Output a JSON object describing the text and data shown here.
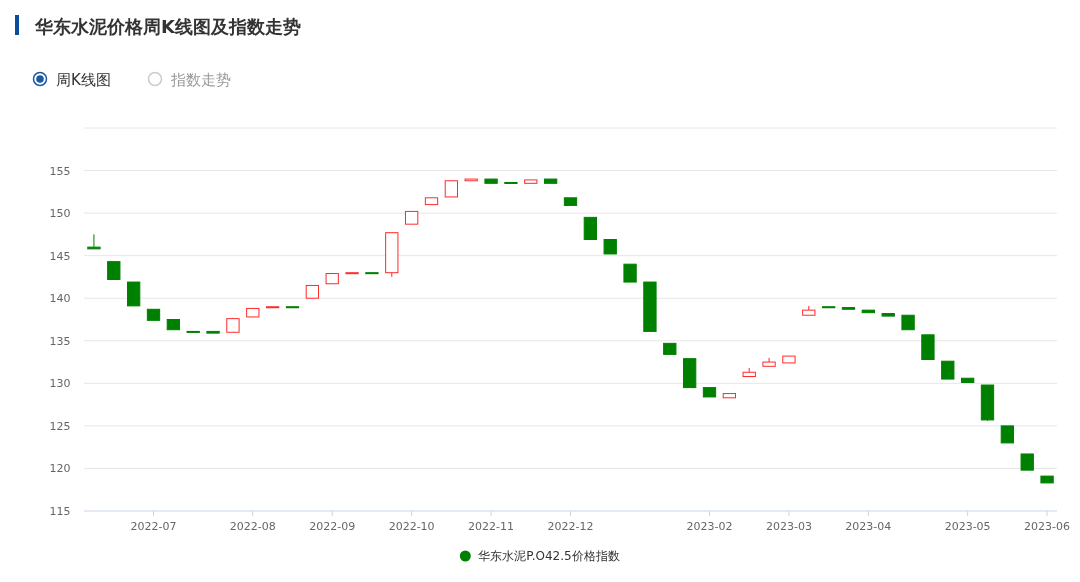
{
  "chart_data": {
    "type": "candlestick",
    "title": "华东水泥价格周K线图及指数走势",
    "annotations": [
      "周K线图",
      "指数走势"
    ],
    "categories": [
      null,
      null,
      null,
      "2022-07",
      null,
      null,
      null,
      null,
      "2022-08",
      null,
      null,
      null,
      "2022-09",
      null,
      null,
      null,
      "2022-10",
      null,
      null,
      null,
      "2022-11",
      null,
      null,
      null,
      "2022-12",
      null,
      null,
      null,
      null,
      null,
      null,
      "2023-02",
      null,
      null,
      null,
      "2023-03",
      null,
      null,
      null,
      "2023-04",
      null,
      null,
      null,
      null,
      "2023-05",
      null,
      null,
      null,
      "2023-06"
    ],
    "series": [
      {
        "name": "华东水泥P.O42.5价格指数",
        "color": "#008000",
        "ohlc": [
          [
            146.0,
            147.5,
            145.8,
            145.8
          ],
          [
            144.3,
            144.3,
            142.2,
            142.2
          ],
          [
            141.9,
            141.9,
            139.1,
            139.1
          ],
          [
            138.7,
            138.7,
            137.4,
            137.4
          ],
          [
            137.5,
            137.5,
            136.3,
            136.3
          ],
          [
            136.1,
            136.1,
            136.0,
            136.0
          ],
          [
            136.1,
            136.1,
            135.9,
            135.9
          ],
          [
            136.0,
            137.7,
            136.0,
            137.6
          ],
          [
            137.8,
            138.8,
            137.8,
            138.8
          ],
          [
            138.9,
            139.0,
            138.9,
            139.0
          ],
          [
            139.0,
            139.0,
            138.9,
            138.9
          ],
          [
            140.0,
            141.5,
            140.0,
            141.5
          ],
          [
            141.7,
            142.9,
            141.7,
            142.9
          ],
          [
            142.9,
            143.0,
            142.9,
            143.0
          ],
          [
            143.0,
            143.0,
            142.9,
            142.9
          ],
          [
            143.0,
            147.7,
            142.5,
            147.7
          ],
          [
            148.7,
            150.2,
            148.7,
            150.2
          ],
          [
            151.0,
            151.8,
            151.0,
            151.8
          ],
          [
            151.9,
            153.8,
            151.9,
            153.8
          ],
          [
            153.8,
            154.0,
            153.8,
            154.0
          ],
          [
            154.0,
            154.0,
            153.5,
            153.5
          ],
          [
            153.6,
            153.6,
            153.5,
            153.5
          ],
          [
            153.5,
            153.9,
            153.5,
            153.9
          ],
          [
            154.0,
            154.0,
            153.5,
            153.5
          ],
          [
            151.8,
            151.8,
            150.9,
            150.9
          ],
          [
            149.5,
            149.5,
            146.9,
            146.9
          ],
          [
            146.9,
            146.9,
            145.2,
            145.2
          ],
          [
            144.0,
            144.0,
            141.9,
            141.9
          ],
          [
            141.9,
            141.9,
            136.1,
            136.1
          ],
          [
            134.7,
            134.7,
            133.4,
            133.4
          ],
          [
            132.9,
            132.9,
            129.5,
            129.5
          ],
          [
            129.5,
            129.5,
            128.4,
            128.4
          ],
          [
            128.3,
            128.8,
            128.3,
            128.8
          ],
          [
            130.8,
            131.8,
            130.8,
            131.3
          ],
          [
            132.0,
            133.0,
            132.0,
            132.5
          ],
          [
            132.4,
            133.2,
            132.4,
            133.2
          ],
          [
            138.0,
            139.1,
            138.0,
            138.6
          ],
          [
            139.0,
            139.0,
            138.9,
            138.9
          ],
          [
            138.9,
            138.9,
            138.7,
            138.7
          ],
          [
            138.6,
            138.6,
            138.3,
            138.3
          ],
          [
            138.2,
            138.2,
            137.9,
            137.9
          ],
          [
            138.0,
            138.0,
            136.3,
            136.3
          ],
          [
            135.7,
            135.7,
            132.8,
            132.8
          ],
          [
            132.6,
            132.6,
            130.5,
            130.5
          ],
          [
            130.6,
            130.6,
            130.1,
            130.1
          ],
          [
            129.8,
            129.8,
            125.6,
            125.7
          ],
          [
            125.0,
            125.0,
            123.0,
            123.0
          ],
          [
            121.7,
            121.7,
            119.8,
            119.8
          ],
          [
            119.1,
            119.1,
            118.3,
            118.3
          ]
        ],
        "colors": [
          "#008000",
          "#008000",
          "#008000",
          "#008000",
          "#008000",
          "#008000",
          "#008000",
          "#ff2a2a",
          "#ff2a2a",
          "#ff2a2a",
          "#008000",
          "#ff2a2a",
          "#ff2a2a",
          "#ff2a2a",
          "#008000",
          "#ff2a2a",
          "#ff2a2a",
          "#ff2a2a",
          "#ff2a2a",
          "#ff2a2a",
          "#008000",
          "#008000",
          "#ff2a2a",
          "#008000",
          "#008000",
          "#008000",
          "#008000",
          "#008000",
          "#008000",
          "#008000",
          "#008000",
          "#008000",
          "#ff2a2a",
          "#ff2a2a",
          "#ff2a2a",
          "#ff2a2a",
          "#ff2a2a",
          "#008000",
          "#008000",
          "#008000",
          "#008000",
          "#008000",
          "#008000",
          "#008000",
          "#008000",
          "#008000",
          "#008000",
          "#008000",
          "#008000"
        ]
      }
    ],
    "ylim": [
      115,
      160
    ],
    "yticks": [
      115,
      120,
      125,
      130,
      135,
      140,
      145,
      150,
      155,
      {
        "value": 160,
        "label": null
      }
    ],
    "grid": "y",
    "legend": "bottom"
  }
}
